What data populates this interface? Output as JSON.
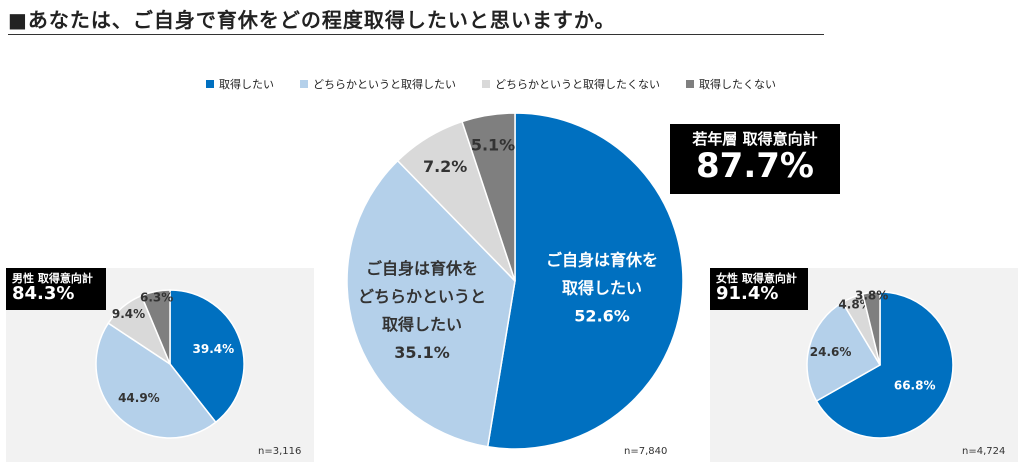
{
  "title": "■あなたは、ご自身で育休をどの程度取得したいと思いますか。",
  "legend": [
    {
      "label": "取得したい",
      "color": "#0070c0"
    },
    {
      "label": "どちらかというと取得したい",
      "color": "#b4d0ea"
    },
    {
      "label": "どちらかというと取得したくない",
      "color": "#d9d9d9"
    },
    {
      "label": "取得したくない",
      "color": "#7f7f7f"
    }
  ],
  "panels": {
    "male": {
      "badge_label": "男性 取得意向計",
      "badge_value": "84.3%",
      "n": "n=3,116"
    },
    "young": {
      "badge_label": "若年層 取得意向計",
      "badge_value": "87.7%",
      "n": "n=7,840"
    },
    "female": {
      "badge_label": "女性 取得意向計",
      "badge_value": "91.4%",
      "n": "n=4,724"
    }
  },
  "chart_data": [
    {
      "type": "pie",
      "group": "男性",
      "categories": [
        "取得したい",
        "どちらかというと取得したい",
        "どちらかというと取得したくない",
        "取得したくない"
      ],
      "values": [
        39.4,
        44.9,
        9.4,
        6.3
      ],
      "labels": [
        "39.4%",
        "44.9%",
        "9.4%",
        "6.3%"
      ],
      "colors": [
        "#0070c0",
        "#b4d0ea",
        "#d9d9d9",
        "#7f7f7f"
      ]
    },
    {
      "type": "pie",
      "group": "若年層",
      "categories": [
        "取得したい",
        "どちらかというと取得したい",
        "どちらかというと取得したくない",
        "取得したくない"
      ],
      "values": [
        52.6,
        35.1,
        7.2,
        5.1
      ],
      "labels": [
        [
          "ご自身は育休を",
          "取得したい",
          "52.6%"
        ],
        [
          "ご自身は育休を",
          "どちらかというと",
          "取得したい",
          "35.1%"
        ],
        [
          "7.2%"
        ],
        [
          "5.1%"
        ]
      ],
      "colors": [
        "#0070c0",
        "#b4d0ea",
        "#d9d9d9",
        "#7f7f7f"
      ]
    },
    {
      "type": "pie",
      "group": "女性",
      "categories": [
        "取得したい",
        "どちらかというと取得したい",
        "どちらかというと取得したくない",
        "取得したくない"
      ],
      "values": [
        66.8,
        24.6,
        4.8,
        3.8
      ],
      "labels": [
        "66.8%",
        "24.6%",
        "4.8%",
        "3.8%"
      ],
      "colors": [
        "#0070c0",
        "#b4d0ea",
        "#d9d9d9",
        "#7f7f7f"
      ]
    }
  ]
}
